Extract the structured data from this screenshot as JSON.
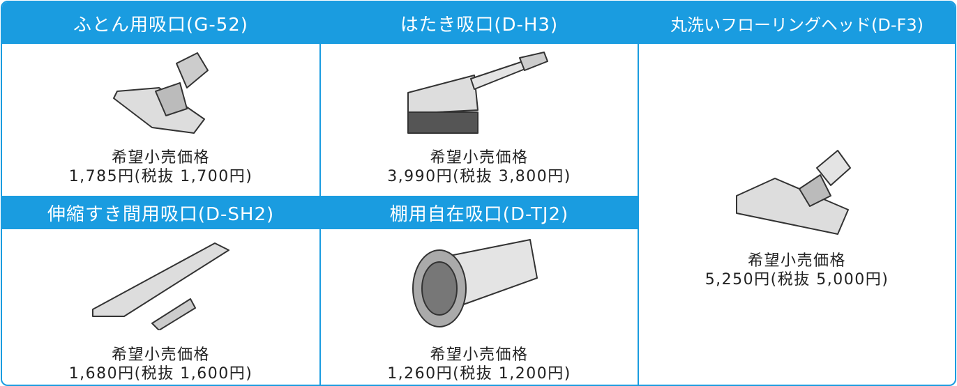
{
  "products": [
    {
      "name": "ふとん用吸口(G-52)",
      "price_label": "希望小売価格",
      "price": "1,785円(税抜 1,700円)"
    },
    {
      "name": "はたき吸口(D-H3)",
      "price_label": "希望小売価格",
      "price": "3,990円(税抜 3,800円)"
    },
    {
      "name": "丸洗いフローリングヘッド(D-F3)",
      "price_label": "希望小売価格",
      "price": "5,250円(税抜 5,000円)"
    },
    {
      "name": "伸縮すき間用吸口(D-SH2)",
      "price_label": "希望小売価格",
      "price": "1,680円(税抜 1,600円)"
    },
    {
      "name": "棚用自在吸口(D-TJ2)",
      "price_label": "希望小売価格",
      "price": "1,260円(税抜 1,200円)"
    }
  ]
}
